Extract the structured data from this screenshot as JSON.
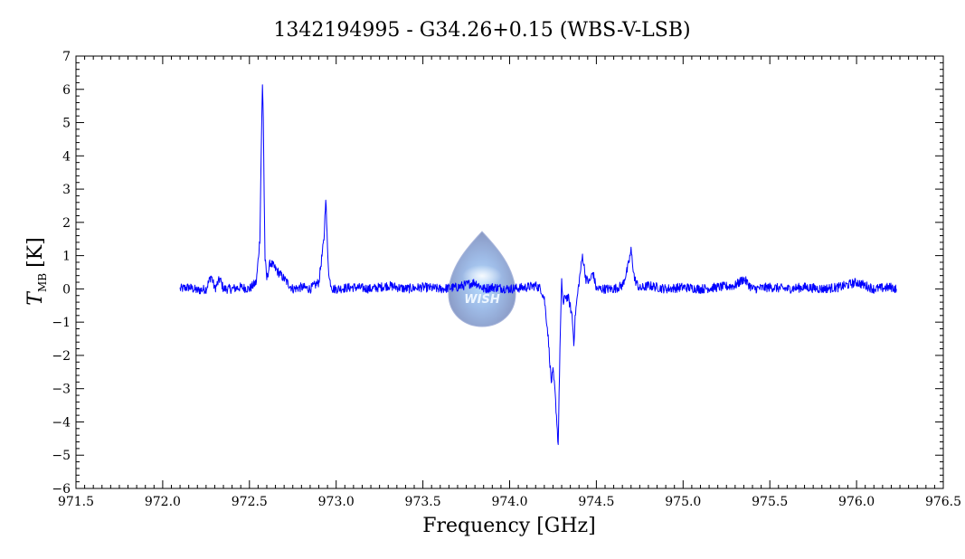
{
  "chart_data": {
    "type": "line",
    "title": "1342194995 - G34.26+0.15 (WBS-V-LSB)",
    "xlabel": "Frequency [GHz]",
    "ylabel_main": "T",
    "ylabel_sub": "MB",
    "ylabel_unit": "[K]",
    "xlim": [
      971.5,
      976.5
    ],
    "ylim": [
      -6,
      7
    ],
    "x_ticks": [
      971.5,
      972.0,
      972.5,
      973.0,
      973.5,
      974.0,
      974.5,
      975.0,
      975.5,
      976.0,
      976.5
    ],
    "x_tick_labels": [
      "971.5",
      "972.0",
      "972.5",
      "973.0",
      "973.5",
      "974.0",
      "974.5",
      "975.0",
      "975.5",
      "976.0",
      "976.5"
    ],
    "y_ticks": [
      -6,
      -5,
      -4,
      -3,
      -2,
      -1,
      0,
      1,
      2,
      3,
      4,
      5,
      6,
      7
    ],
    "y_tick_labels": [
      "-6",
      "-5",
      "-4",
      "-3",
      "-2",
      "-1",
      "0",
      "1",
      "2",
      "3",
      "4",
      "5",
      "6",
      "7"
    ],
    "grid": false,
    "line_color": "#0000ff",
    "watermark_text": "WISH",
    "series": [
      {
        "x": [
          972.1,
          972.15,
          972.2,
          972.25,
          972.28,
          972.3,
          972.33,
          972.35,
          972.4,
          972.45,
          972.5,
          972.54,
          972.56,
          972.57,
          972.575,
          972.58,
          972.585,
          972.59,
          972.6,
          972.62,
          972.65,
          972.7,
          972.75,
          972.8,
          972.85,
          972.9,
          972.93,
          972.94,
          972.95,
          972.96,
          972.98,
          973.0,
          973.1,
          973.2,
          973.3,
          973.4,
          973.5,
          973.6,
          973.7,
          973.8,
          973.85,
          973.9,
          974.0,
          974.1,
          974.15,
          974.18,
          974.2,
          974.22,
          974.24,
          974.25,
          974.26,
          974.27,
          974.28,
          974.29,
          974.3,
          974.31,
          974.32,
          974.34,
          974.36,
          974.37,
          974.38,
          974.4,
          974.42,
          974.44,
          974.46,
          974.48,
          974.5,
          974.55,
          974.6,
          974.65,
          974.68,
          974.7,
          974.72,
          974.75,
          974.8,
          974.9,
          975.0,
          975.1,
          975.2,
          975.3,
          975.35,
          975.4,
          975.5,
          975.6,
          975.7,
          975.8,
          975.9,
          976.0,
          976.1,
          976.2,
          976.23
        ],
        "y": [
          0.0,
          0.05,
          -0.05,
          0.0,
          0.4,
          0.0,
          0.3,
          0.0,
          0.0,
          0.05,
          0.0,
          0.2,
          1.5,
          4.8,
          6.1,
          5.2,
          2.8,
          0.9,
          0.3,
          0.8,
          0.6,
          0.3,
          0.0,
          0.05,
          0.0,
          0.2,
          1.5,
          2.8,
          1.2,
          0.3,
          0.0,
          0.0,
          0.05,
          0.0,
          0.1,
          0.0,
          0.05,
          0.0,
          0.05,
          0.2,
          0.0,
          0.05,
          0.0,
          0.05,
          0.1,
          0.0,
          -0.3,
          -1.3,
          -2.8,
          -2.5,
          -3.0,
          -3.8,
          -4.7,
          -1.8,
          0.2,
          -0.5,
          -0.2,
          -0.3,
          -0.8,
          -1.6,
          -0.7,
          0.2,
          1.0,
          0.3,
          0.2,
          0.5,
          0.0,
          0.0,
          0.0,
          0.1,
          0.6,
          1.15,
          0.3,
          0.0,
          0.1,
          0.0,
          0.05,
          0.0,
          0.05,
          0.1,
          0.3,
          0.0,
          0.05,
          0.0,
          0.05,
          0.0,
          0.05,
          0.2,
          0.0,
          0.05,
          0.0
        ]
      }
    ]
  }
}
